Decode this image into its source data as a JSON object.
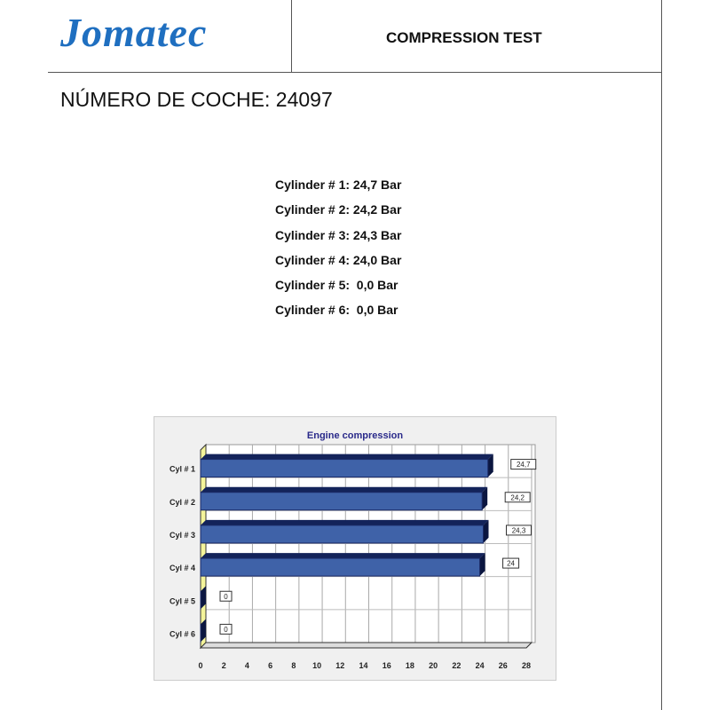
{
  "header": {
    "logo": "Jomatec",
    "title": "COMPRESSION TEST"
  },
  "car_number": "NÚMERO DE COCHE: 24097",
  "results": [
    "Cylinder # 1: 24,7 Bar",
    "Cylinder # 2: 24,2 Bar",
    "Cylinder # 3: 24,3 Bar",
    "Cylinder # 4: 24,0 Bar",
    "Cylinder # 5:  0,0 Bar",
    "Cylinder # 6:  0,0 Bar"
  ],
  "chart_data": {
    "type": "bar",
    "orientation": "horizontal",
    "title": "Engine compression",
    "categories": [
      "Cyl # 1",
      "Cyl # 2",
      "Cyl # 3",
      "Cyl # 4",
      "Cyl # 5",
      "Cyl # 6"
    ],
    "values": [
      24.7,
      24.2,
      24.3,
      24.0,
      0,
      0
    ],
    "data_labels": [
      "24,7",
      "24,2",
      "24,3",
      "24",
      "0",
      "0"
    ],
    "xlim": [
      0,
      28
    ],
    "xticks": [
      0,
      2,
      4,
      6,
      8,
      10,
      12,
      14,
      16,
      18,
      20,
      22,
      24,
      26,
      28
    ],
    "grid": true,
    "bar_color": "#3f62a8",
    "title_color": "#2a2a8a"
  }
}
